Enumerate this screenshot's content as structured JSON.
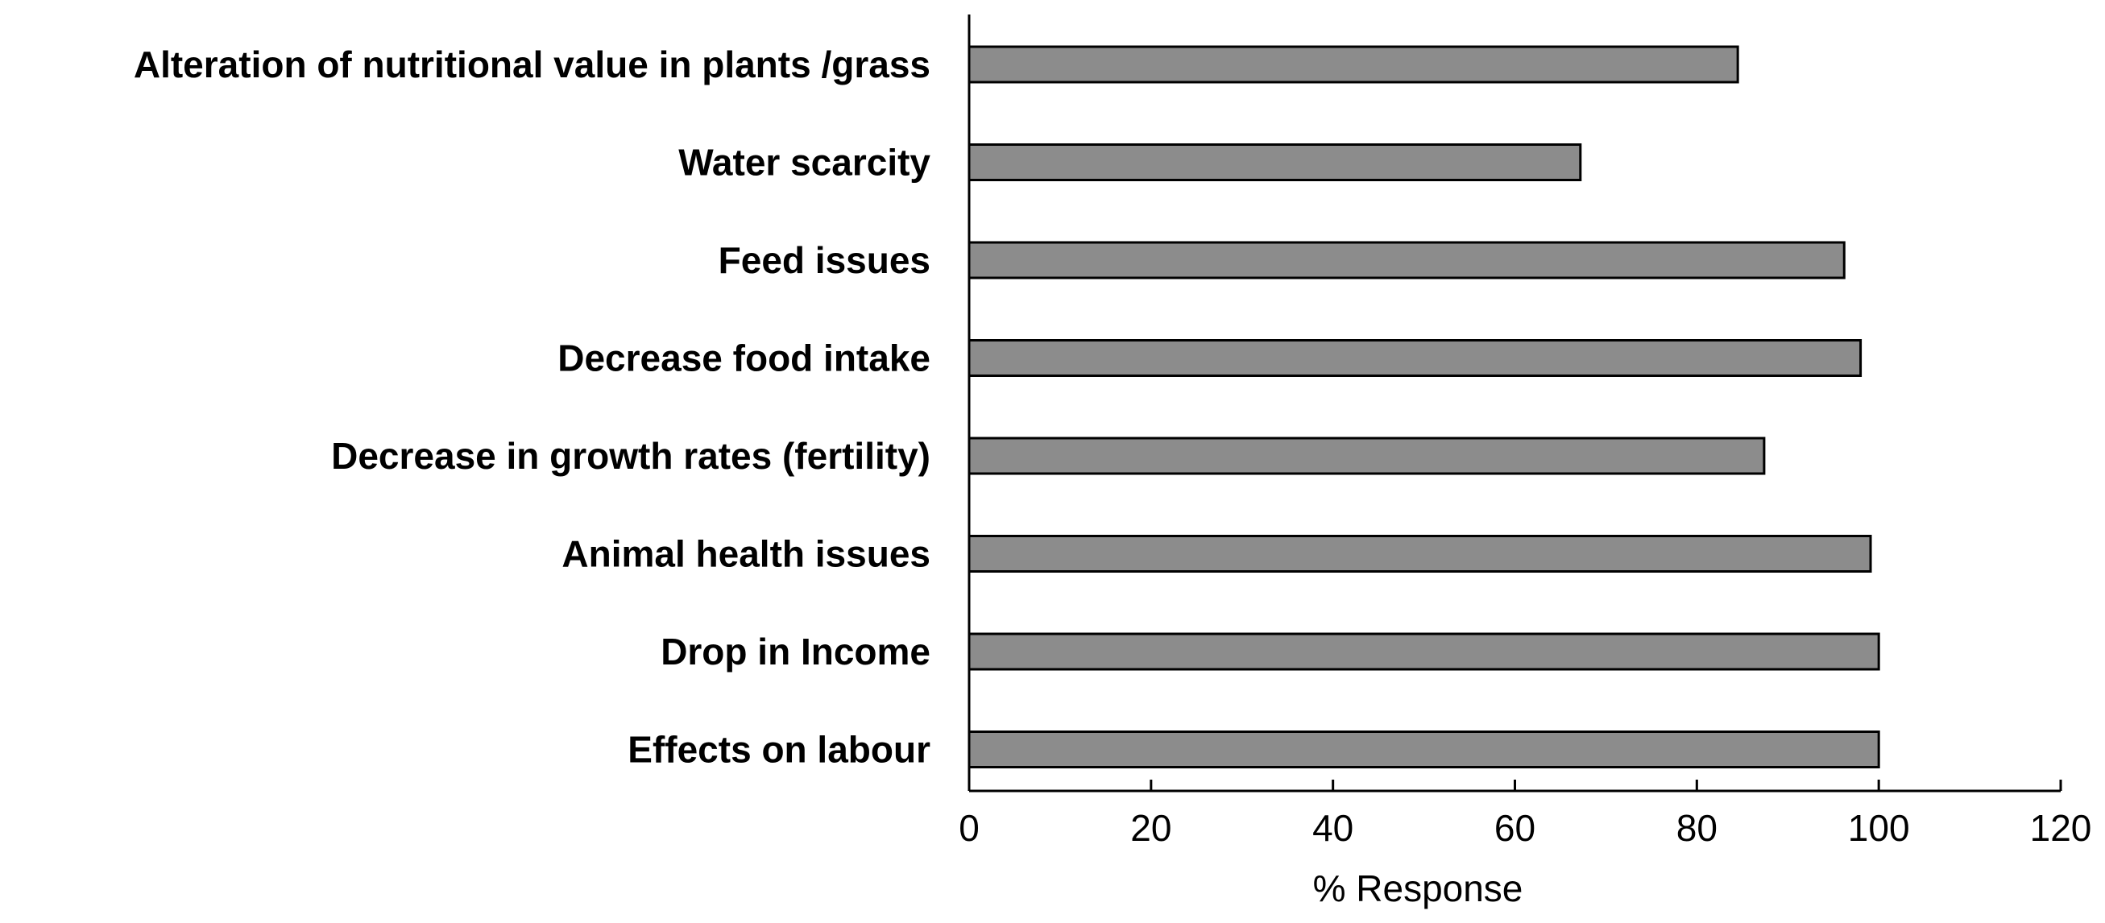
{
  "chart_data": {
    "type": "bar",
    "orientation": "horizontal",
    "title": "",
    "xlabel": "% Response",
    "ylabel": "",
    "xlim": [
      0,
      120
    ],
    "x_ticks": [
      0,
      20,
      40,
      60,
      80,
      100,
      120
    ],
    "x_tick_labels": [
      "0",
      "20",
      "40",
      "60",
      "80",
      "100",
      "120"
    ],
    "grid": false,
    "legend": "none",
    "categories": [
      "Alteration of nutritional value in plants /grass",
      "Water scarcity",
      "Feed issues",
      "Decrease food intake",
      "Decrease in growth rates (fertility)",
      "Animal health issues",
      "Drop in Income",
      "Effects on labour"
    ],
    "values": [
      84.5,
      67.2,
      96.2,
      98.0,
      87.4,
      99.1,
      100.0,
      100.0
    ],
    "bar_color": "#8c8c8c",
    "bar_edge_color": "#000000"
  }
}
